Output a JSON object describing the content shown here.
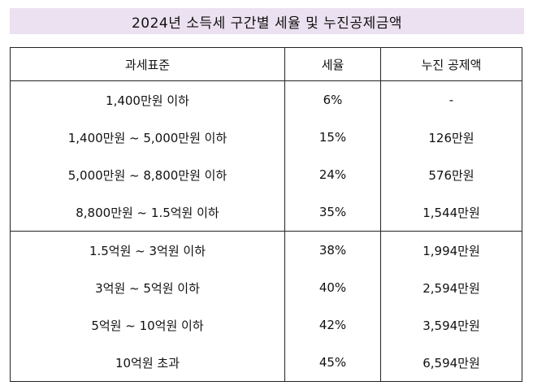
{
  "title": {
    "text": "2024년 소득세 구간별 세율 및 누진공제금액",
    "background": "#ece1f0"
  },
  "table": {
    "headers": [
      "과세표준",
      "세율",
      "누진 공제액"
    ],
    "rows": [
      [
        "1,400만원 이하",
        "6%",
        "-"
      ],
      [
        "1,400만원 ~ 5,000만원 이하",
        "15%",
        "126만원"
      ],
      [
        "5,000만원 ~ 8,800만원 이하",
        "24%",
        "576만원"
      ],
      [
        "8,800만원 ~ 1.5억원 이하",
        "35%",
        "1,544만원"
      ],
      [
        "1.5억원 ~ 3억원 이하",
        "38%",
        "1,994만원"
      ],
      [
        "3억원 ~ 5억원 이하",
        "40%",
        "2,594만원"
      ],
      [
        "5억원 ~ 10억원 이하",
        "42%",
        "3,594만원"
      ],
      [
        "10억원 초과",
        "45%",
        "6,594만원"
      ]
    ]
  }
}
